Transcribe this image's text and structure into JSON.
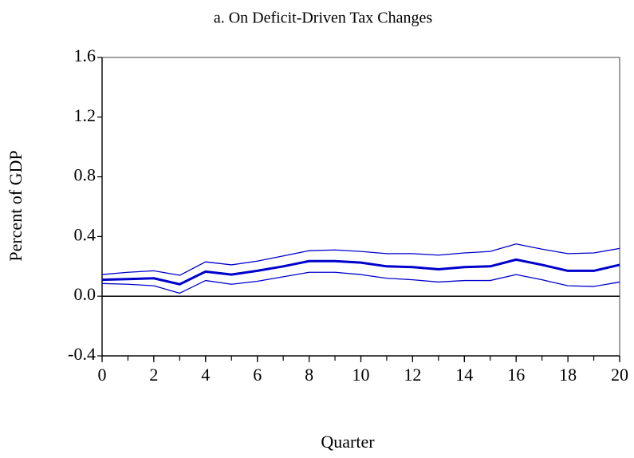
{
  "chart_data": {
    "type": "line",
    "title": "a.  On Deficit-Driven Tax Changes",
    "x_label": "Quarter",
    "y_label": "Percent of GDP",
    "x": [
      0,
      1,
      2,
      3,
      4,
      5,
      6,
      7,
      8,
      9,
      10,
      11,
      12,
      13,
      14,
      15,
      16,
      17,
      18,
      19,
      20
    ],
    "series": [
      {
        "color": "#0000cc",
        "values": [
          0.11,
          0.115,
          0.12,
          0.08,
          0.165,
          0.145,
          0.17,
          0.2,
          0.235,
          0.235,
          0.225,
          0.2,
          0.195,
          0.18,
          0.195,
          0.2,
          0.245,
          0.21,
          0.17,
          0.17,
          0.21
        ]
      },
      {
        "color": "#0000cc",
        "values": [
          0.145,
          0.16,
          0.17,
          0.14,
          0.23,
          0.21,
          0.235,
          0.27,
          0.305,
          0.31,
          0.3,
          0.285,
          0.285,
          0.275,
          0.29,
          0.3,
          0.35,
          0.315,
          0.285,
          0.29,
          0.32
        ]
      },
      {
        "color": "#0000cc",
        "values": [
          0.085,
          0.08,
          0.07,
          0.02,
          0.105,
          0.08,
          0.1,
          0.13,
          0.16,
          0.16,
          0.145,
          0.12,
          0.11,
          0.095,
          0.105,
          0.105,
          0.145,
          0.11,
          0.07,
          0.065,
          0.095
        ]
      }
    ],
    "xlim": [
      0,
      20
    ],
    "xticks": [
      0,
      2,
      4,
      6,
      8,
      10,
      12,
      14,
      16,
      18,
      20
    ],
    "ylim": [
      -0.4,
      1.6
    ],
    "yticks": [
      {
        "value": -0.4,
        "label": "-0.4"
      },
      {
        "value": 0,
        "label": "0.0"
      },
      {
        "value": 0.4,
        "label": "0.4"
      },
      {
        "value": 0.8,
        "label": "0.8"
      },
      {
        "value": 1.2,
        "label": "1.2"
      },
      {
        "value": 1.6,
        "label": "1.6"
      }
    ],
    "zero_line": true
  }
}
